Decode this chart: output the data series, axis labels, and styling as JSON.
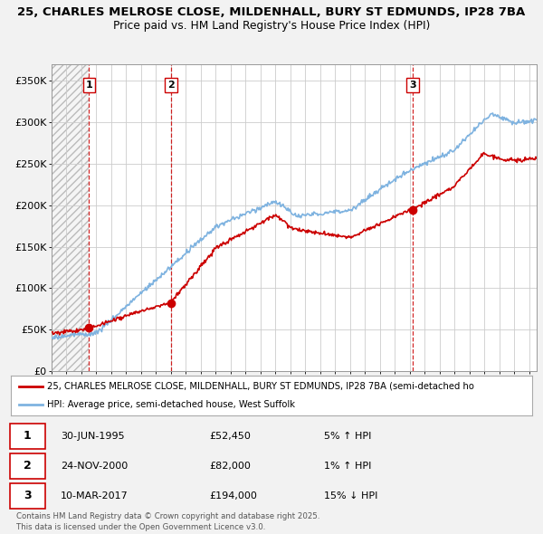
{
  "title_line1": "25, CHARLES MELROSE CLOSE, MILDENHALL, BURY ST EDMUNDS, IP28 7BA",
  "title_line2": "Price paid vs. HM Land Registry's House Price Index (HPI)",
  "bg_color": "#f2f2f2",
  "plot_bg_color": "#ffffff",
  "grid_color": "#cccccc",
  "hpi_color": "#7fb3e0",
  "price_color": "#cc0000",
  "sale_marker_color": "#cc0000",
  "vline_color": "#cc0000",
  "hatch_color": "#dddddd",
  "ylim": [
    0,
    370000
  ],
  "yticks": [
    0,
    50000,
    100000,
    150000,
    200000,
    250000,
    300000,
    350000
  ],
  "ytick_labels": [
    "£0",
    "£50K",
    "£100K",
    "£150K",
    "£200K",
    "£250K",
    "£300K",
    "£350K"
  ],
  "sale_points": [
    {
      "year": 1995.5,
      "price": 52450,
      "label": "1"
    },
    {
      "year": 2001.0,
      "price": 82000,
      "label": "2"
    },
    {
      "year": 2017.2,
      "price": 194000,
      "label": "3"
    }
  ],
  "legend_price_label": "25, CHARLES MELROSE CLOSE, MILDENHALL, BURY ST EDMUNDS, IP28 7BA (semi-detached ho",
  "legend_hpi_label": "HPI: Average price, semi-detached house, West Suffolk",
  "table_rows": [
    {
      "num": "1",
      "date": "30-JUN-1995",
      "price": "£52,450",
      "hpi": "5% ↑ HPI"
    },
    {
      "num": "2",
      "date": "24-NOV-2000",
      "price": "£82,000",
      "hpi": "1% ↑ HPI"
    },
    {
      "num": "3",
      "date": "10-MAR-2017",
      "price": "£194,000",
      "hpi": "15% ↓ HPI"
    }
  ],
  "footnote": "Contains HM Land Registry data © Crown copyright and database right 2025.\nThis data is licensed under the Open Government Licence v3.0.",
  "xmin": 1993,
  "xmax": 2025.5
}
